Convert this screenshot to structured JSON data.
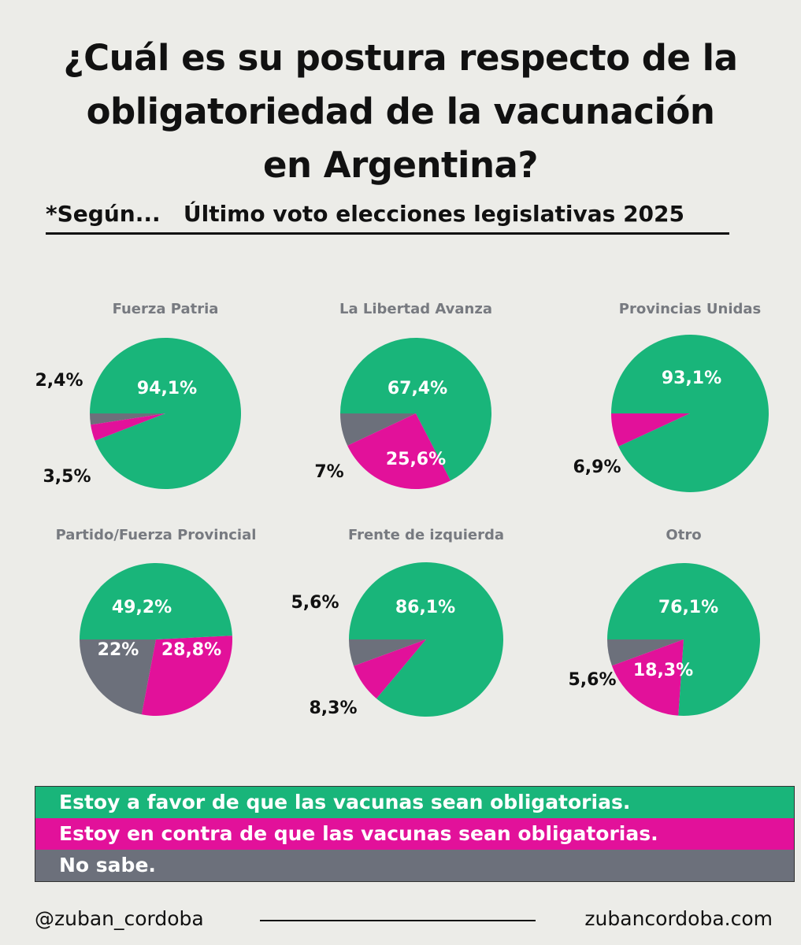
{
  "title": "¿Cuál es su postura respecto de la obligatoriedad de la vacunación en Argentina?",
  "title_lines": [
    "¿Cuál es su postura respecto de la",
    "obligatoriedad de la vacunación",
    "en Argentina?"
  ],
  "subtitle": "*Según...   Último voto elecciones legislativas 2025",
  "colors": {
    "favor": "#19b57a",
    "contra": "#e2119a",
    "nosabe": "#6c707b"
  },
  "chart_data": {
    "type": "pie",
    "categories": [
      "Estoy a favor de que las vacunas sean obligatorias.",
      "Estoy en contra de que las vacunas sean obligatorias.",
      "No sabe."
    ],
    "charts": [
      {
        "title": "Fuerza Patria",
        "values": [
          94.1,
          3.5,
          2.4
        ],
        "labels": [
          "94,1%",
          "3,5%",
          "2,4%"
        ]
      },
      {
        "title": "La Libertad Avanza",
        "values": [
          67.4,
          25.6,
          7
        ],
        "labels": [
          "67,4%",
          "25,6%",
          "7%"
        ]
      },
      {
        "title": "Provincias Unidas",
        "values": [
          93.1,
          6.9,
          0
        ],
        "labels": [
          "93,1%",
          "6,9%",
          ""
        ]
      },
      {
        "title": "Partido/Fuerza Provincial",
        "values": [
          49.2,
          28.8,
          22
        ],
        "labels": [
          "49,2%",
          "28,8%",
          "22%"
        ]
      },
      {
        "title": "Frente de izquierda",
        "values": [
          86.1,
          8.3,
          5.6
        ],
        "labels": [
          "86,1%",
          "8,3%",
          "5,6%"
        ]
      },
      {
        "title": "Otro",
        "values": [
          76.1,
          18.3,
          5.6
        ],
        "labels": [
          "76,1%",
          "18,3%",
          "5,6%"
        ]
      }
    ],
    "legend": "bottom"
  },
  "footer": {
    "handle": "@zuban_cordoba",
    "site": "zubancordoba.com"
  }
}
